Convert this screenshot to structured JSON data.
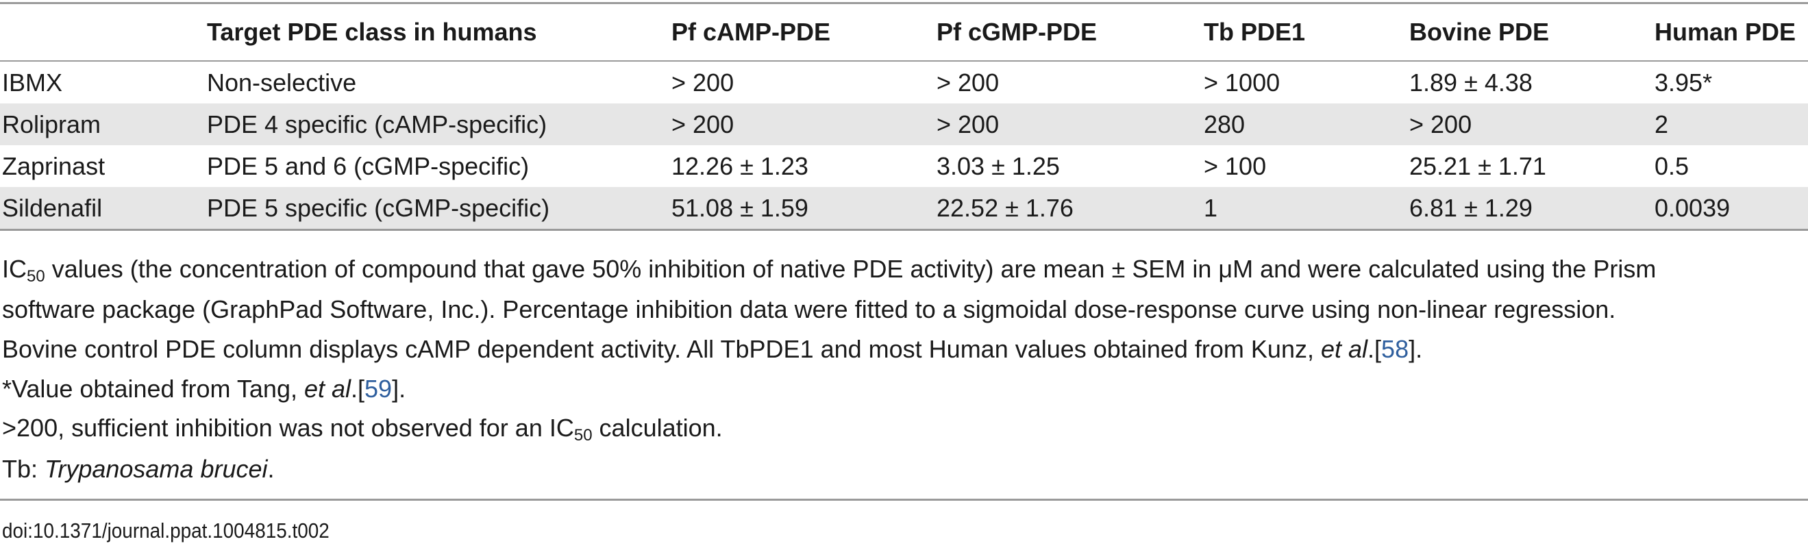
{
  "table": {
    "headers": [
      "",
      "Target PDE class in humans",
      "Pf cAMP-PDE",
      "Pf cGMP-PDE",
      "Tb PDE1",
      "Bovine PDE",
      "Human PDE"
    ],
    "rows": [
      [
        "IBMX",
        "Non-selective",
        "> 200",
        "> 200",
        "> 1000",
        "1.89 ± 4.38",
        "3.95*"
      ],
      [
        "Rolipram",
        "PDE 4 specific (cAMP-specific)",
        "> 200",
        "> 200",
        "280",
        "> 200",
        "2"
      ],
      [
        "Zaprinast",
        "PDE 5 and 6 (cGMP-specific)",
        "12.26 ± 1.23",
        "3.03 ± 1.25",
        "> 100",
        "25.21 ± 1.71",
        "0.5"
      ],
      [
        "Sildenafil",
        "PDE 5 specific (cGMP-specific)",
        "51.08 ± 1.59",
        "22.52 ± 1.76",
        "1",
        "6.81 ± 1.29",
        "0.0039"
      ]
    ]
  },
  "notes": {
    "n1_a": "IC",
    "n1_sub": "50",
    "n1_b": " values (the concentration of compound that gave 50% inhibition of native PDE activity) are mean ± SEM in μM and were calculated using the Prism",
    "n2": "software package (GraphPad Software, Inc.). Percentage inhibition data were fitted to a sigmoidal dose-response curve using non-linear regression.",
    "n3_a": "Bovine control PDE column displays cAMP dependent activity. All TbPDE1 and most Human values obtained from Kunz, ",
    "n3_em": "et al",
    "n3_b": ".[",
    "n3_ref": "58",
    "n3_c": "].",
    "n4_a": "*Value obtained from Tang, ",
    "n4_em": "et al",
    "n4_b": ".[",
    "n4_ref": "59",
    "n4_c": "].",
    "n5_a": ">200, sufficient inhibition was not observed for an IC",
    "n5_sub": "50",
    "n5_b": " calculation.",
    "n6_a": "Tb: ",
    "n6_em": "Trypanosama brucei",
    "n6_b": "."
  },
  "doi": "doi:10.1371/journal.ppat.1004815.t002"
}
